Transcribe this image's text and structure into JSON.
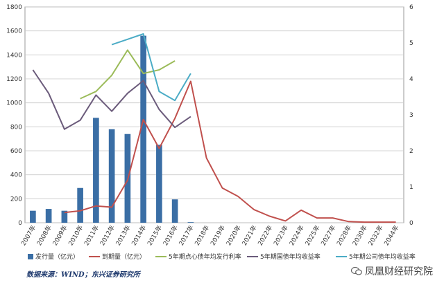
{
  "chart_data": {
    "type": "bar",
    "categories": [
      "2007年",
      "2008年",
      "2009年",
      "2010年",
      "2011年",
      "2012年",
      "2013年",
      "2014年",
      "2015年",
      "2016年",
      "2017年",
      "2018年",
      "2019年",
      "2020年",
      "2021年",
      "2022年",
      "2023年",
      "2024年",
      "2025年",
      "2027年",
      "2028年",
      "2030年",
      "2032年",
      "2044年"
    ],
    "y_left_ticks": [
      "0",
      "200",
      "400",
      "600",
      "800",
      "1000",
      "1200",
      "1400",
      "1600",
      "1800"
    ],
    "y_right_ticks": [
      "0",
      "1",
      "2",
      "3",
      "4",
      "5",
      "6"
    ],
    "ylim_left": [
      0,
      1800
    ],
    "ylim_right": [
      0,
      6
    ],
    "grid": true,
    "legend_position": "bottom",
    "series": [
      {
        "name": "发行量（亿元）",
        "type": "bar",
        "axis": "left",
        "color": "#3a6ea5",
        "values": [
          100,
          115,
          100,
          290,
          875,
          780,
          740,
          1560,
          650,
          195,
          5,
          0,
          0,
          0,
          0,
          0,
          0,
          0,
          0,
          0,
          0,
          0,
          0,
          0
        ]
      },
      {
        "name": "到期量（亿元）",
        "type": "line",
        "axis": "left",
        "color": "#c0504d",
        "values": [
          null,
          null,
          85,
          100,
          140,
          130,
          355,
          860,
          620,
          870,
          1180,
          540,
          290,
          220,
          110,
          55,
          15,
          105,
          40,
          40,
          10,
          5,
          5,
          5
        ]
      },
      {
        "name": "5年期点心债年均发行利率",
        "type": "line",
        "axis": "right",
        "color": "#9bbb59",
        "values": [
          null,
          null,
          null,
          3.45,
          3.65,
          4.1,
          4.8,
          4.15,
          4.25,
          4.5,
          null,
          null,
          null,
          null,
          null,
          null,
          null,
          null,
          null,
          null,
          null,
          null,
          null,
          null
        ]
      },
      {
        "name": "5年期国债年均收益率",
        "type": "line",
        "axis": "right",
        "color": "#6b5b7b",
        "values": [
          4.25,
          3.6,
          2.6,
          2.85,
          3.55,
          3.1,
          3.6,
          3.95,
          3.15,
          2.65,
          2.95,
          null,
          null,
          null,
          null,
          null,
          null,
          null,
          null,
          null,
          null,
          null,
          null,
          null
        ]
      },
      {
        "name": "5年期公司债年均收益率",
        "type": "line",
        "axis": "right",
        "color": "#4bacc6",
        "values": [
          null,
          null,
          null,
          null,
          null,
          4.95,
          5.1,
          5.25,
          3.65,
          3.4,
          4.15,
          null,
          null,
          null,
          null,
          null,
          null,
          null,
          null,
          null,
          null,
          null,
          null,
          null
        ]
      }
    ]
  },
  "footer": {
    "source": "数据来源：WIND；东兴证券研究所",
    "watermark": "凤凰财经研究院"
  }
}
